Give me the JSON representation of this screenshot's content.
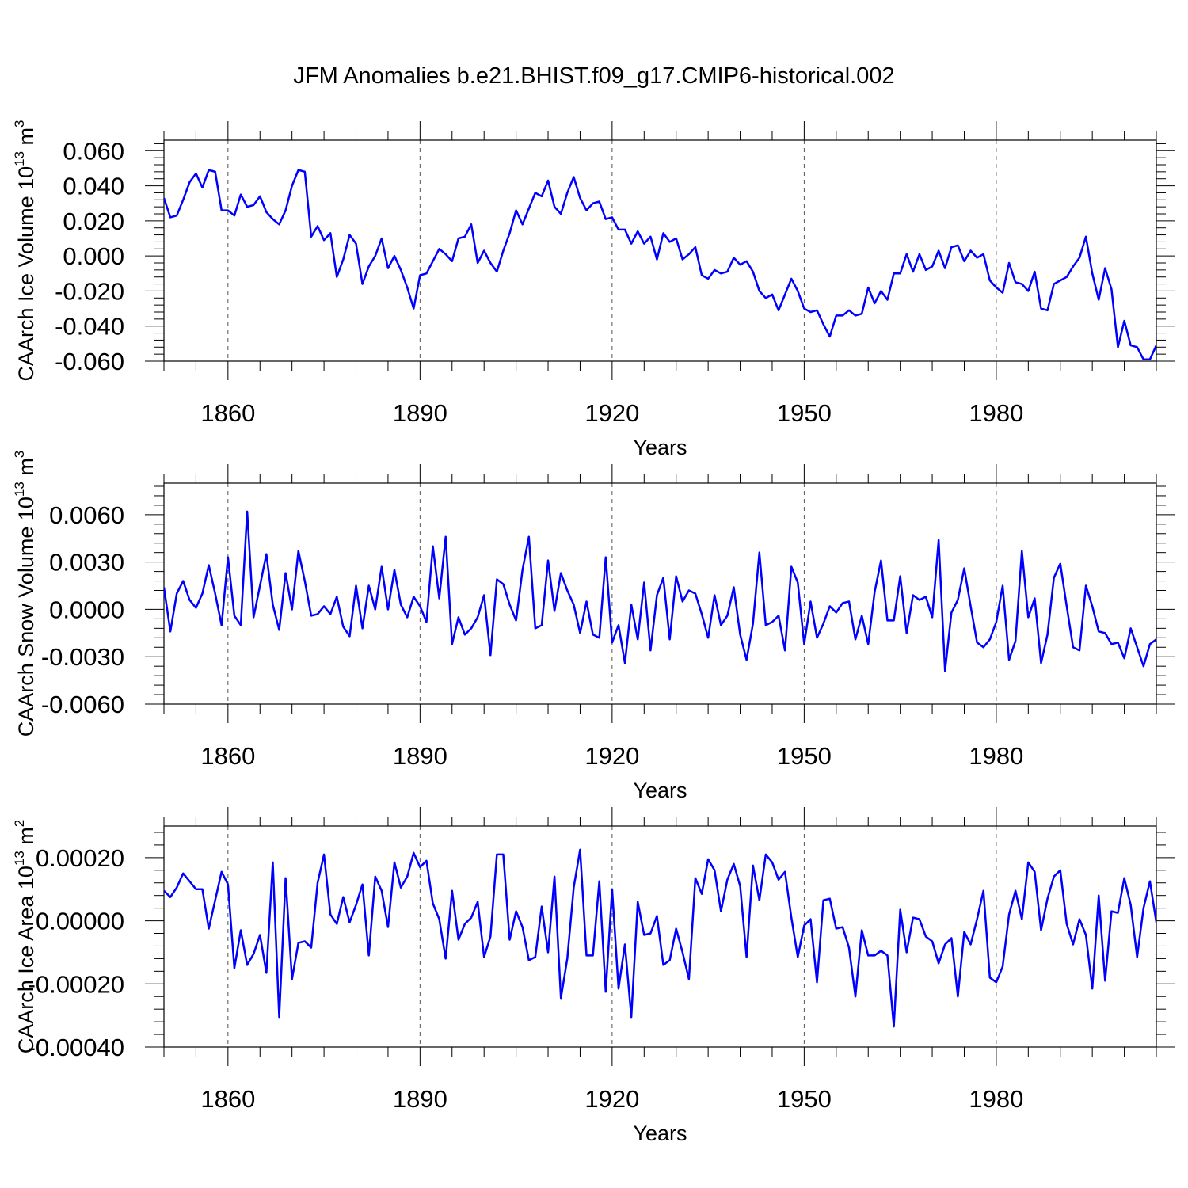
{
  "title": "JFM Anomalies b.e21.BHIST.f09_g17.CMIP6-historical.002",
  "colors": {
    "series": "#0000ff",
    "axis": "#000000",
    "grid": "#555555"
  },
  "chart_data": [
    {
      "type": "line",
      "title": "JFM Anomalies b.e21.BHIST.f09_g17.CMIP6-historical.002",
      "xlabel": "Years",
      "ylabel": "CAArch Ice Volume 10",
      "ylabel_exp": "13",
      "ylabel_unit": " m",
      "ylabel_unit_exp": "3",
      "xlim": [
        1850,
        2005
      ],
      "ylim": [
        -0.06,
        0.066
      ],
      "yticks": [
        -0.06,
        -0.04,
        -0.02,
        0.0,
        0.02,
        0.04,
        0.06
      ],
      "ytick_labels": [
        "-0.060",
        "-0.040",
        "-0.020",
        "0.000",
        "0.020",
        "0.040",
        "0.060"
      ],
      "xticks": [
        1860,
        1890,
        1920,
        1950,
        1980
      ],
      "xtick_labels": [
        "1860",
        "1890",
        "1920",
        "1950",
        "1980"
      ],
      "x_start": 1850,
      "series": [
        {
          "name": "CAArch Ice Volume",
          "values": [
            0.033,
            0.022,
            0.023,
            0.032,
            0.042,
            0.047,
            0.039,
            0.049,
            0.048,
            0.026,
            0.026,
            0.023,
            0.035,
            0.028,
            0.029,
            0.034,
            0.025,
            0.021,
            0.018,
            0.026,
            0.04,
            0.049,
            0.048,
            0.011,
            0.017,
            0.009,
            0.013,
            -0.012,
            -0.002,
            0.012,
            0.007,
            -0.016,
            -0.006,
            0.0,
            0.01,
            -0.007,
            0.0,
            -0.008,
            -0.018,
            -0.03,
            -0.011,
            -0.01,
            -0.003,
            0.004,
            0.001,
            -0.003,
            0.01,
            0.011,
            0.018,
            -0.004,
            0.003,
            -0.004,
            -0.009,
            0.003,
            0.013,
            0.026,
            0.018,
            0.027,
            0.036,
            0.034,
            0.043,
            0.028,
            0.024,
            0.036,
            0.045,
            0.033,
            0.026,
            0.03,
            0.031,
            0.021,
            0.022,
            0.015,
            0.015,
            0.007,
            0.014,
            0.007,
            0.011,
            -0.002,
            0.013,
            0.008,
            0.01,
            -0.002,
            0.001,
            0.005,
            -0.011,
            -0.013,
            -0.008,
            -0.01,
            -0.009,
            -0.001,
            -0.005,
            -0.003,
            -0.009,
            -0.02,
            -0.024,
            -0.022,
            -0.031,
            -0.022,
            -0.013,
            -0.02,
            -0.03,
            -0.032,
            -0.031,
            -0.039,
            -0.046,
            -0.034,
            -0.034,
            -0.031,
            -0.034,
            -0.033,
            -0.018,
            -0.027,
            -0.02,
            -0.025,
            -0.01,
            -0.01,
            0.001,
            -0.009,
            0.001,
            -0.008,
            -0.006,
            0.003,
            -0.007,
            0.005,
            0.006,
            -0.003,
            0.003,
            -0.001,
            0.001,
            -0.014,
            -0.018,
            -0.021,
            -0.004,
            -0.015,
            -0.016,
            -0.02,
            -0.009,
            -0.03,
            -0.031,
            -0.016,
            -0.014,
            -0.012,
            -0.006,
            -0.001,
            0.011,
            -0.01,
            -0.025,
            -0.007,
            -0.019,
            -0.052,
            -0.037,
            -0.051,
            -0.052,
            -0.059,
            -0.059,
            -0.051
          ]
        }
      ]
    },
    {
      "type": "line",
      "title": "",
      "xlabel": "Years",
      "ylabel": "CAArch Snow Volume 10",
      "ylabel_exp": "13",
      "ylabel_unit": " m",
      "ylabel_unit_exp": "3",
      "xlim": [
        1850,
        2005
      ],
      "ylim": [
        -0.006,
        0.008
      ],
      "yticks": [
        -0.006,
        -0.003,
        0.0,
        0.003,
        0.006
      ],
      "ytick_labels": [
        "-0.0060",
        "-0.0030",
        "0.0000",
        "0.0030",
        "0.0060"
      ],
      "xticks": [
        1860,
        1890,
        1920,
        1950,
        1980
      ],
      "xtick_labels": [
        "1860",
        "1890",
        "1920",
        "1950",
        "1980"
      ],
      "x_start": 1850,
      "series": [
        {
          "name": "CAArch Snow Volume",
          "values": [
            0.0014,
            -0.0014,
            0.001,
            0.0018,
            0.0006,
            0.0001,
            0.001,
            0.0028,
            0.001,
            -0.001,
            0.0033,
            -0.0004,
            -0.001,
            0.0062,
            -0.0005,
            0.0015,
            0.0035,
            0.0003,
            -0.0013,
            0.0023,
            0.0,
            0.0037,
            0.0018,
            -0.0004,
            -0.0003,
            0.0002,
            -0.0003,
            0.0008,
            -0.0011,
            -0.0017,
            0.0015,
            -0.0012,
            0.0015,
            0.0,
            0.0027,
            0.0,
            0.0025,
            0.0003,
            -0.0005,
            0.0008,
            0.0002,
            -0.0008,
            0.004,
            0.0007,
            0.0046,
            -0.0022,
            -0.0005,
            -0.0016,
            -0.0012,
            -0.0005,
            0.0009,
            -0.0029,
            0.0019,
            0.0016,
            0.0003,
            -0.0007,
            0.0025,
            0.0046,
            -0.0012,
            -0.001,
            0.0031,
            -0.0001,
            0.0023,
            0.0012,
            0.0003,
            -0.0015,
            0.0005,
            -0.0016,
            -0.0018,
            0.0033,
            -0.0021,
            -0.001,
            -0.0034,
            0.0003,
            -0.0019,
            0.0017,
            -0.0026,
            0.0009,
            0.002,
            -0.0019,
            0.0021,
            0.0005,
            0.0012,
            0.001,
            -0.0003,
            -0.0018,
            0.0009,
            -0.001,
            -0.0004,
            0.0014,
            -0.0016,
            -0.0032,
            -0.0009,
            0.0036,
            -0.001,
            -0.0008,
            -0.0004,
            -0.0026,
            0.0027,
            0.0017,
            -0.0022,
            0.0005,
            -0.0018,
            -0.0009,
            0.0002,
            -0.0002,
            0.0004,
            0.0005,
            -0.0019,
            -0.0004,
            -0.0022,
            0.0011,
            0.0031,
            -0.0007,
            -0.0007,
            0.0021,
            -0.0015,
            0.0009,
            0.0006,
            0.0008,
            -0.0005,
            0.0044,
            -0.0039,
            -0.0002,
            0.0006,
            0.0026,
            0.0002,
            -0.0021,
            -0.0024,
            -0.0019,
            -0.0008,
            0.0015,
            -0.0032,
            -0.002,
            0.0037,
            -0.0005,
            0.0007,
            -0.0034,
            -0.0016,
            0.002,
            0.0029,
            0.0002,
            -0.0024,
            -0.0026,
            0.0015,
            0.0002,
            -0.0014,
            -0.0015,
            -0.0022,
            -0.0021,
            -0.0031,
            -0.0012,
            -0.0024,
            -0.0036,
            -0.0022,
            -0.0019
          ]
        }
      ]
    },
    {
      "type": "line",
      "title": "",
      "xlabel": "Years",
      "ylabel": "CAArch Ice Area 10",
      "ylabel_exp": "13",
      "ylabel_unit": " m",
      "ylabel_unit_exp": "2",
      "xlim": [
        1850,
        2005
      ],
      "ylim": [
        -0.0004,
        0.0003
      ],
      "yticks": [
        -0.0004,
        -0.0002,
        0.0,
        0.0002
      ],
      "ytick_labels": [
        "-0.00040",
        "-0.00020",
        "0.00000",
        "0.00020"
      ],
      "xticks": [
        1860,
        1890,
        1920,
        1950,
        1980
      ],
      "xtick_labels": [
        "1860",
        "1890",
        "1920",
        "1950",
        "1980"
      ],
      "x_start": 1850,
      "series": [
        {
          "name": "CAArch Ice Area",
          "values": [
            9.5e-05,
            7.5e-05,
            0.000105,
            0.00015,
            0.000125,
            0.0001,
            0.0001,
            -2.5e-05,
            6.5e-05,
            0.000155,
            0.000115,
            -0.00015,
            -3e-05,
            -0.00014,
            -0.000105,
            -4.5e-05,
            -0.000165,
            0.000185,
            -0.000305,
            0.000135,
            -0.000185,
            -7e-05,
            -6.5e-05,
            -8.5e-05,
            0.00012,
            0.00021,
            2e-05,
            -1e-05,
            7.5e-05,
            -5e-06,
            5e-05,
            0.000115,
            -0.00011,
            0.00014,
            9.5e-05,
            -2e-05,
            0.000185,
            0.000105,
            0.00014,
            0.000215,
            0.00017,
            0.00019,
            5.5e-05,
            5e-06,
            -0.00012,
            9.5e-05,
            -6e-05,
            -1e-05,
            1e-05,
            6e-05,
            -0.000115,
            -5e-05,
            0.00021,
            0.00021,
            -6e-05,
            3e-05,
            -2e-05,
            -0.000125,
            -0.000115,
            4.5e-05,
            -0.0001,
            0.00014,
            -0.000245,
            -0.00012,
            0.000105,
            0.000225,
            -0.00011,
            -0.00011,
            0.000125,
            -0.000225,
            0.0001,
            -0.000215,
            -7.5e-05,
            -0.000305,
            6e-05,
            -4.5e-05,
            -4e-05,
            1.5e-05,
            -0.00014,
            -0.000125,
            -2.5e-05,
            -0.0001,
            -0.000185,
            0.000135,
            8.5e-05,
            0.000195,
            0.00016,
            3e-05,
            0.00013,
            0.00018,
            0.00011,
            -0.000115,
            0.000175,
            6.5e-05,
            0.00021,
            0.000185,
            0.00013,
            0.000155,
            1e-05,
            -0.000115,
            -1.5e-05,
            5e-06,
            -0.000195,
            6.5e-05,
            7e-05,
            -2.5e-05,
            -2e-05,
            -8.5e-05,
            -0.00024,
            -3e-05,
            -0.00011,
            -0.00011,
            -9.5e-05,
            -0.00011,
            -0.000335,
            3.5e-05,
            -0.0001,
            1e-05,
            5e-06,
            -5e-05,
            -6.5e-05,
            -0.000135,
            -7.5e-05,
            -5.5e-05,
            -0.00024,
            -3.5e-05,
            -7.5e-05,
            5e-06,
            9.5e-05,
            -0.00018,
            -0.000195,
            -0.000145,
            2e-05,
            9.5e-05,
            5e-06,
            0.000185,
            0.000155,
            -3e-05,
            7e-05,
            0.00014,
            0.00016,
            -1e-05,
            -7.5e-05,
            5e-06,
            -4.5e-05,
            -0.000215,
            8e-05,
            -0.00019,
            3e-05,
            2.5e-05,
            0.000135,
            5e-05,
            -0.000115,
            4e-05,
            0.000125,
            -5e-06
          ]
        }
      ]
    }
  ]
}
